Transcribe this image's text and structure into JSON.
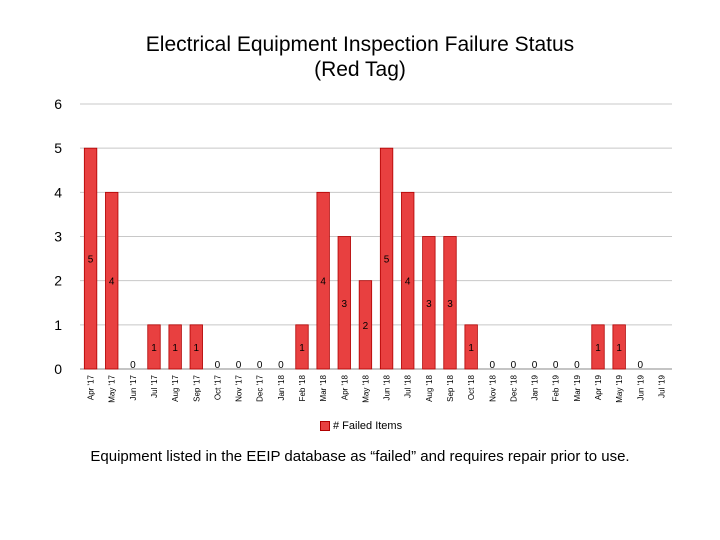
{
  "chart_data": {
    "type": "bar",
    "title": "Electrical Equipment Inspection Failure Status (Red Tag)",
    "title_lines": [
      "Electrical Equipment Inspection Failure Status",
      "(Red Tag)"
    ],
    "categories": [
      "Apr '17",
      "May '17",
      "Jun '17",
      "Jul '17",
      "Aug '17",
      "Sep '17",
      "Oct '17",
      "Nov '17",
      "Dec '17",
      "Jan '18",
      "Feb '18",
      "Mar '18",
      "Apr '18",
      "May '18",
      "Jun '18",
      "Jul '18",
      "Aug '18",
      "Sep '18",
      "Oct '18",
      "Nov '18",
      "Dec '18",
      "Jan '19",
      "Feb '19",
      "Mar '19",
      "Apr '19",
      "May '19",
      "Jun '19",
      "Jul '19"
    ],
    "series": [
      {
        "name": "# Failed Items",
        "values": [
          5,
          4,
          0,
          1,
          1,
          1,
          0,
          0,
          0,
          0,
          1,
          4,
          3,
          2,
          5,
          4,
          3,
          3,
          1,
          0,
          0,
          0,
          0,
          0,
          1,
          1,
          0,
          null
        ],
        "labels": [
          "5",
          "4",
          "0",
          "1",
          "1",
          "1",
          "0",
          "0",
          "0",
          "0",
          "1",
          "4",
          "3",
          "2",
          "5",
          "4",
          "3",
          "3",
          "1",
          "0",
          "0",
          "0",
          "0",
          "0",
          "1",
          "1",
          "0",
          ""
        ]
      }
    ],
    "ylim": [
      0,
      6
    ],
    "yticks": [
      0,
      1,
      2,
      3,
      4,
      5,
      6
    ],
    "xlabel": "",
    "ylabel": "",
    "grid": true,
    "legend_position": "bottom",
    "colors": {
      "bar_fill": "#e84040",
      "bar_stroke": "#b00000",
      "grid": "#c8c8c8",
      "axis": "#888888"
    }
  },
  "footnote": "Equipment listed in the EEIP database as “failed” and requires repair prior to use."
}
